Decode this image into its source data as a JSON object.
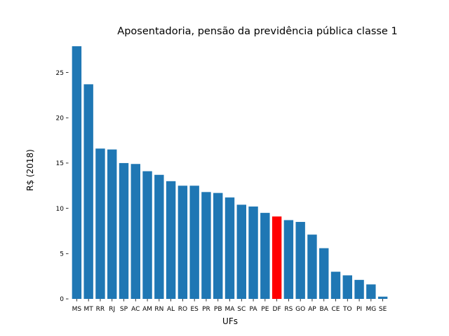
{
  "chart_data": {
    "type": "bar",
    "title": "Aposentadoria, pensão da previdência pública classe 1",
    "xlabel": "UFs",
    "ylabel": "R$ (2018)",
    "ylim": [
      0,
      28.6
    ],
    "yticks": [
      0,
      5,
      10,
      15,
      20,
      25
    ],
    "grid": false,
    "categories": [
      "MS",
      "MT",
      "RR",
      "RJ",
      "SP",
      "AC",
      "AM",
      "RN",
      "AL",
      "RO",
      "ES",
      "PR",
      "PB",
      "MA",
      "SC",
      "PA",
      "PE",
      "DF",
      "RS",
      "GO",
      "AP",
      "BA",
      "CE",
      "TO",
      "PI",
      "MG",
      "SE"
    ],
    "values": [
      27.9,
      23.7,
      16.6,
      16.5,
      15.0,
      14.9,
      14.1,
      13.7,
      13.0,
      12.5,
      12.5,
      11.8,
      11.7,
      11.2,
      10.4,
      10.2,
      9.5,
      9.1,
      8.7,
      8.5,
      7.1,
      5.6,
      3.0,
      2.6,
      2.1,
      1.6,
      0.25
    ],
    "bar_color": "#1f77b4",
    "highlight": {
      "category": "DF",
      "color": "#ff0000"
    }
  }
}
